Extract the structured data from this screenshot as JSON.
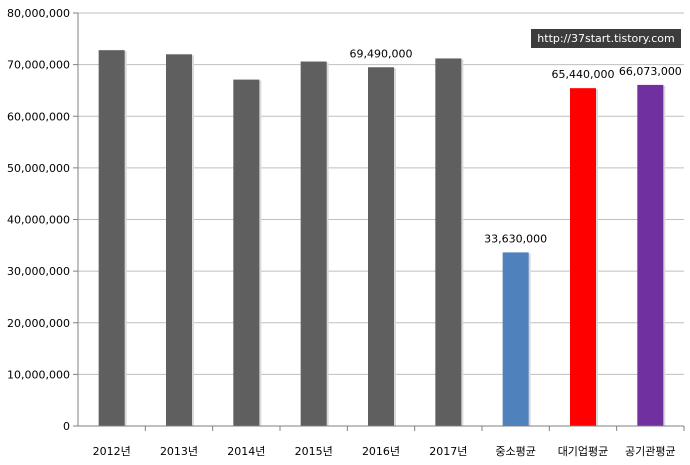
{
  "watermark": "http://37start.tistory.com",
  "chart_data": {
    "type": "bar",
    "categories": [
      "2012년",
      "2013년",
      "2014년",
      "2015년",
      "2016년",
      "2017년",
      "중소평균",
      "대기업평균",
      "공기관평균"
    ],
    "values": [
      72800000,
      72000000,
      67100000,
      70600000,
      69490000,
      71200000,
      33630000,
      65440000,
      66073000
    ],
    "colors": [
      "#5f5f5f",
      "#5f5f5f",
      "#5f5f5f",
      "#5f5f5f",
      "#5f5f5f",
      "#5f5f5f",
      "#4f81bd",
      "#ff0000",
      "#7030a0"
    ],
    "data_labels": [
      "",
      "",
      "",
      "",
      "69,490,000",
      "",
      "33,630,000",
      "65,440,000",
      "66,073,000"
    ],
    "y_ticks": [
      "0",
      "10,000,000",
      "20,000,000",
      "30,000,000",
      "40,000,000",
      "50,000,000",
      "60,000,000",
      "70,000,000",
      "80,000,000"
    ],
    "ylim": [
      0,
      80000000
    ],
    "title": "",
    "xlabel": "",
    "ylabel": "",
    "grid": true,
    "legend": "none"
  }
}
